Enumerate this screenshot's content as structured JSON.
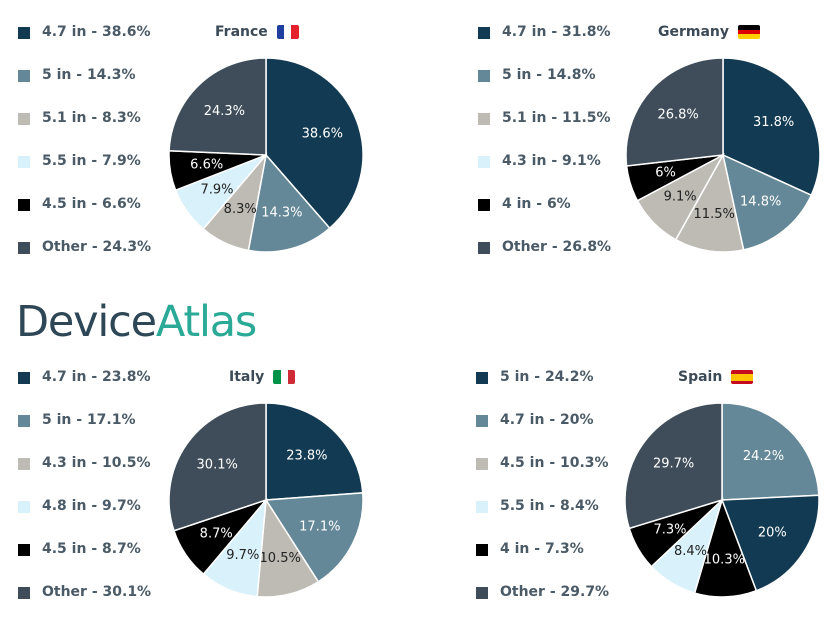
{
  "brand": {
    "part1": "Device",
    "part2": "Atlas"
  },
  "colors": {
    "4.7 in": "#123a52",
    "5 in": "#648897",
    "5.1 in": "#bdbbb4",
    "5.5 in": "#d8f1fb",
    "4.8 in": "#d8f1fb",
    "4.3 in": "#bdbbb4",
    "4.5 in": "#000000",
    "4 in": "#000000",
    "Other": "#3e4d59"
  },
  "chart_data": [
    {
      "type": "pie",
      "title": "France",
      "flag_icon": "france-flag-icon",
      "legend_entries": [
        "4.7 in - 38.6%",
        "5 in - 14.3%",
        "5.1 in - 8.3%",
        "5.5 in - 7.9%",
        "4.5 in - 6.6%",
        "Other - 24.3%"
      ],
      "slices": [
        {
          "category": "4.7 in",
          "value": 38.6,
          "label": "38.6%"
        },
        {
          "category": "5 in",
          "value": 14.3,
          "label": "14.3%"
        },
        {
          "category": "5.1 in",
          "value": 8.3,
          "label": "8.3%"
        },
        {
          "category": "5.5 in",
          "value": 7.9,
          "label": "7.9%"
        },
        {
          "category": "4.5 in",
          "value": 6.6,
          "label": "6.6%"
        },
        {
          "category": "Other",
          "value": 24.3,
          "label": "24.3%"
        }
      ]
    },
    {
      "type": "pie",
      "title": "Germany",
      "flag_icon": "germany-flag-icon",
      "legend_entries": [
        "4.7 in - 31.8%",
        "5 in - 14.8%",
        "5.1 in - 11.5%",
        "4.3 in - 9.1%",
        "4 in - 6%",
        "Other - 26.8%"
      ],
      "slices": [
        {
          "category": "4.7 in",
          "value": 31.8,
          "label": "31.8%"
        },
        {
          "category": "5 in",
          "value": 14.8,
          "label": "14.8%"
        },
        {
          "category": "5.1 in",
          "value": 11.5,
          "label": "11.5%"
        },
        {
          "category": "4.3 in",
          "value": 9.1,
          "label": "9.1%"
        },
        {
          "category": "4 in",
          "value": 6,
          "label": "6%"
        },
        {
          "category": "Other",
          "value": 26.8,
          "label": "26.8%"
        }
      ]
    },
    {
      "type": "pie",
      "title": "Italy",
      "flag_icon": "italy-flag-icon",
      "legend_entries": [
        "4.7 in - 23.8%",
        "5 in - 17.1%",
        "4.3 in - 10.5%",
        "4.8 in - 9.7%",
        "4.5 in - 8.7%",
        "Other - 30.1%"
      ],
      "slices": [
        {
          "category": "4.7 in",
          "value": 23.8,
          "label": "23.8%"
        },
        {
          "category": "5 in",
          "value": 17.1,
          "label": "17.1%"
        },
        {
          "category": "4.3 in",
          "value": 10.5,
          "label": "10.5%"
        },
        {
          "category": "4.8 in",
          "value": 9.7,
          "label": "9.7%"
        },
        {
          "category": "4.5 in",
          "value": 8.7,
          "label": "8.7%"
        },
        {
          "category": "Other",
          "value": 30.1,
          "label": "30.1%"
        }
      ]
    },
    {
      "type": "pie",
      "title": "Spain",
      "flag_icon": "spain-flag-icon",
      "legend_entries": [
        "5 in - 24.2%",
        "4.7 in - 20%",
        "4.5 in - 10.3%",
        "5.5 in - 8.4%",
        "4 in - 7.3%",
        "Other - 29.7%"
      ],
      "slices": [
        {
          "category": "5 in",
          "value": 24.2,
          "label": "24.2%"
        },
        {
          "category": "4.7 in",
          "value": 20,
          "label": "20%"
        },
        {
          "category": "4.5 in",
          "value": 10.3,
          "label": "10.3%"
        },
        {
          "category": "5.5 in",
          "value": 8.4,
          "label": "8.4%"
        },
        {
          "category": "4 in",
          "value": 7.3,
          "label": "7.3%"
        },
        {
          "category": "Other",
          "value": 29.7,
          "label": "29.7%"
        }
      ]
    }
  ]
}
